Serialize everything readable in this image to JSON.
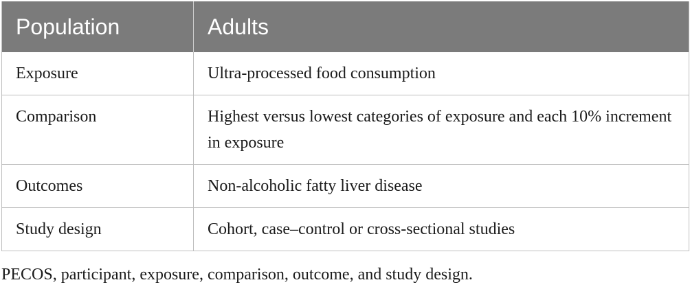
{
  "table": {
    "header": {
      "col1": "Population",
      "col2": "Adults"
    },
    "rows": [
      {
        "label": "Exposure",
        "value": "Ultra-processed food consumption"
      },
      {
        "label": "Comparison",
        "value": "Highest versus lowest categories of exposure and each 10% increment in exposure"
      },
      {
        "label": "Outcomes",
        "value": "Non-alcoholic fatty liver disease"
      },
      {
        "label": "Study design",
        "value": "Cohort, case–control or cross-sectional studies"
      }
    ]
  },
  "footnote": "PECOS, participant, exposure, comparison, outcome, and study design."
}
